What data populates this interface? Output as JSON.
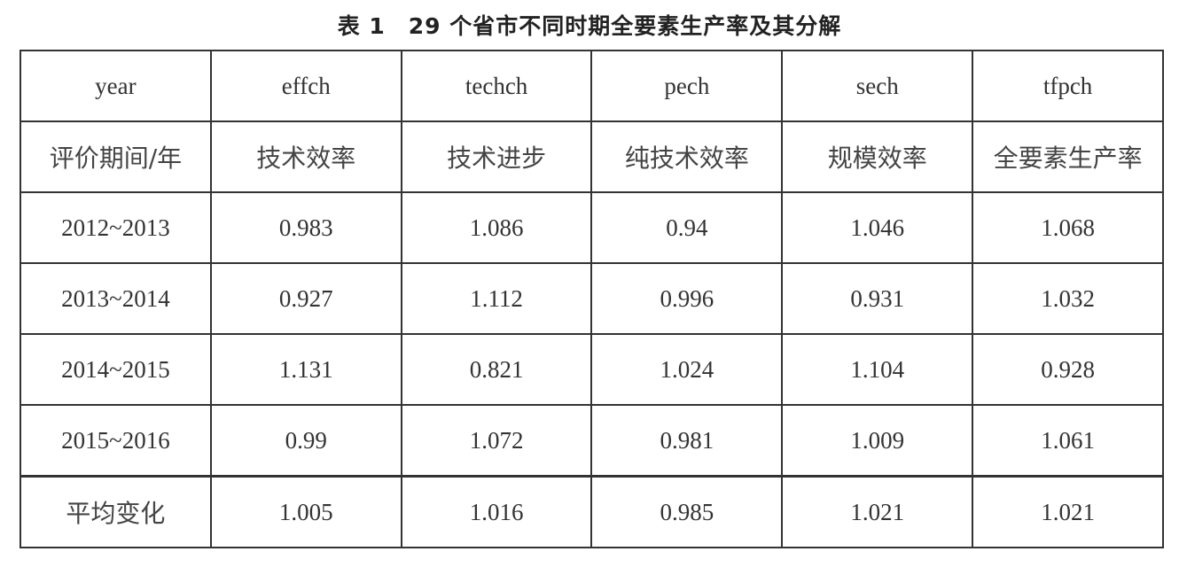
{
  "title": "表 1　29 个省市不同时期全要素生产率及其分解",
  "table": {
    "header_en": [
      "year",
      "effch",
      "techch",
      "pech",
      "sech",
      "tfpch"
    ],
    "header_zh": [
      "评价期间/年",
      "技术效率",
      "技术进步",
      "纯技术效率",
      "规模效率",
      "全要素生产率"
    ],
    "rows": [
      [
        "2012~2013",
        "0.983",
        "1.086",
        "0.94",
        "1.046",
        "1.068"
      ],
      [
        "2013~2014",
        "0.927",
        "1.112",
        "0.996",
        "0.931",
        "1.032"
      ],
      [
        "2014~2015",
        "1.131",
        "0.821",
        "1.024",
        "1.104",
        "0.928"
      ],
      [
        "2015~2016",
        "0.99",
        "1.072",
        "0.981",
        "1.009",
        "1.061"
      ]
    ],
    "average": [
      "平均变化",
      "1.005",
      "1.016",
      "0.985",
      "1.021",
      "1.021"
    ]
  }
}
